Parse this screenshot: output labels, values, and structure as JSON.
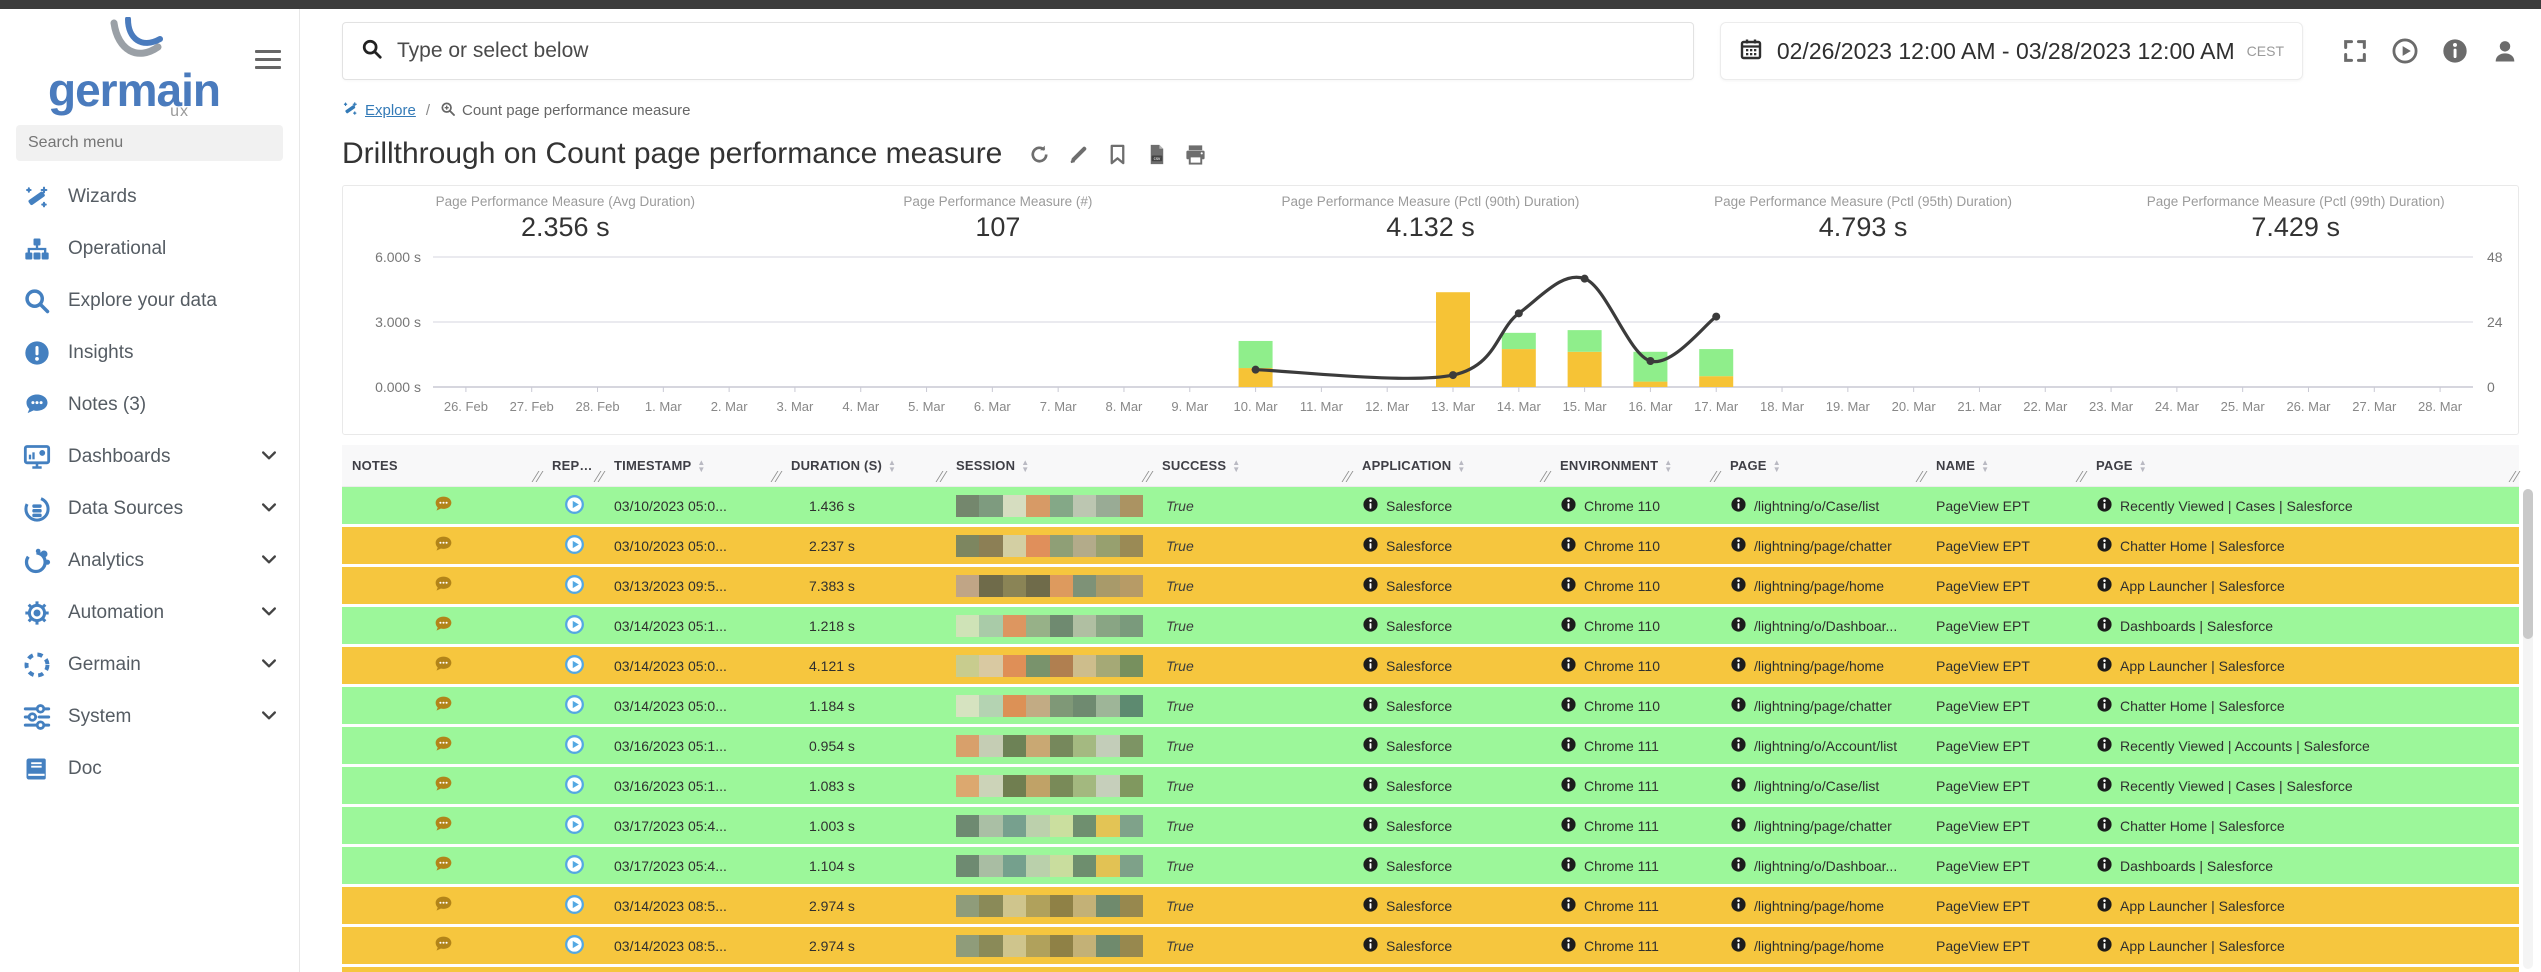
{
  "colors": {
    "accent_blue": "#4480c0",
    "link_blue": "#337ab7",
    "row_green": "#9cf79a",
    "row_yellow": "#f6c63e",
    "bar_yellow": "#f6c336",
    "bar_green": "#8fee8b",
    "line_dark": "#3b3b3b",
    "note_icon": "#b28419",
    "replay_icon": "#54a8e2",
    "info_badge": "#1d1d1d"
  },
  "sidebar": {
    "brand": "germain",
    "brand_sub": "ux",
    "search_placeholder": "Search menu",
    "items": [
      {
        "label": "Wizards",
        "icon": "wand-icon",
        "expandable": false
      },
      {
        "label": "Operational",
        "icon": "hierarchy-icon",
        "expandable": false
      },
      {
        "label": "Explore your data",
        "icon": "search-icon",
        "expandable": false
      },
      {
        "label": "Insights",
        "icon": "alert-circle-icon",
        "expandable": false
      },
      {
        "label": "Notes (3)",
        "icon": "chat-bubble-icon",
        "expandable": false
      },
      {
        "label": "Dashboards",
        "icon": "monitor-chart-icon",
        "expandable": true
      },
      {
        "label": "Data Sources",
        "icon": "database-signal-icon",
        "expandable": true
      },
      {
        "label": "Analytics",
        "icon": "share-nodes-icon",
        "expandable": true
      },
      {
        "label": "Automation",
        "icon": "gear-icon",
        "expandable": true
      },
      {
        "label": "Germain",
        "icon": "dashed-circle-icon",
        "expandable": true
      },
      {
        "label": "System",
        "icon": "sliders-icon",
        "expandable": true
      },
      {
        "label": "Doc",
        "icon": "book-icon",
        "expandable": false
      }
    ]
  },
  "topbar": {
    "search_placeholder": "Type or select below",
    "date_range": "02/26/2023 12:00 AM - 03/28/2023 12:00 AM",
    "timezone": "CEST",
    "icons": [
      "fullscreen-icon",
      "play-circle-icon",
      "info-circle-icon",
      "user-icon"
    ]
  },
  "breadcrumb": {
    "link_label": "Explore",
    "separator": "/",
    "current": "Count page performance measure"
  },
  "page": {
    "title": "Drillthrough on Count page performance measure",
    "action_icons": [
      "refresh-icon",
      "pencil-icon",
      "bookmark-icon",
      "csv-file-icon",
      "print-icon"
    ]
  },
  "metrics": [
    {
      "label": "Page Performance Measure (Avg Duration)",
      "value": "2.356 s"
    },
    {
      "label": "Page Performance Measure (#)",
      "value": "107"
    },
    {
      "label": "Page Performance Measure (Pctl (90th) Duration)",
      "value": "4.132 s"
    },
    {
      "label": "Page Performance Measure (Pctl (95th) Duration)",
      "value": "4.793 s"
    },
    {
      "label": "Page Performance Measure (Pctl (99th) Duration)",
      "value": "7.429 s"
    }
  ],
  "chart_data": {
    "type": "bar",
    "title": "",
    "categories": [
      "26. Feb",
      "27. Feb",
      "28. Feb",
      "1. Mar",
      "2. Mar",
      "3. Mar",
      "4. Mar",
      "5. Mar",
      "6. Mar",
      "7. Mar",
      "8. Mar",
      "9. Mar",
      "10. Mar",
      "11. Mar",
      "12. Mar",
      "13. Mar",
      "14. Mar",
      "15. Mar",
      "16. Mar",
      "17. Mar",
      "18. Mar",
      "19. Mar",
      "20. Mar",
      "21. Mar",
      "22. Mar",
      "23. Mar",
      "24. Mar",
      "25. Mar",
      "26. Mar",
      "27. Mar",
      "28. Mar"
    ],
    "series": [
      {
        "name": "count-yellow",
        "kind": "bar",
        "axis": "right",
        "color": "#f6c336",
        "values": [
          0,
          0,
          0,
          0,
          0,
          0,
          0,
          0,
          0,
          0,
          0,
          0,
          7,
          0,
          0,
          35,
          14,
          13,
          2,
          4,
          0,
          0,
          0,
          0,
          0,
          0,
          0,
          0,
          0,
          0,
          0
        ]
      },
      {
        "name": "count-green",
        "kind": "bar",
        "axis": "right",
        "color": "#8fee8b",
        "values": [
          0,
          0,
          0,
          0,
          0,
          0,
          0,
          0,
          0,
          0,
          0,
          0,
          10,
          0,
          0,
          0,
          6,
          8,
          11,
          10,
          0,
          0,
          0,
          0,
          0,
          0,
          0,
          0,
          0,
          0,
          0
        ]
      },
      {
        "name": "avg-duration-line",
        "kind": "line",
        "axis": "left",
        "color": "#3b3b3b",
        "values": [
          null,
          null,
          null,
          null,
          null,
          null,
          null,
          null,
          null,
          null,
          null,
          null,
          0.8,
          null,
          null,
          0.55,
          3.4,
          5.0,
          1.2,
          3.25,
          null,
          null,
          null,
          null,
          null,
          null,
          null,
          null,
          null,
          null,
          null
        ]
      }
    ],
    "left_axis": {
      "labels": [
        "6.000 s",
        "3.000 s",
        "0.000 s"
      ],
      "values": [
        6,
        3,
        0
      ],
      "range": [
        0,
        6
      ]
    },
    "right_axis": {
      "labels": [
        "48",
        "24",
        "0"
      ],
      "values": [
        48,
        24,
        0
      ],
      "range": [
        0,
        48
      ]
    },
    "grid": true,
    "legend": "none",
    "stacked": true
  },
  "table": {
    "columns": [
      {
        "key": "notes",
        "label": "NOTES",
        "sortable": false
      },
      {
        "key": "replay",
        "label": "REPL...",
        "sortable": false
      },
      {
        "key": "timestamp",
        "label": "TIMESTAMP",
        "sortable": true
      },
      {
        "key": "duration",
        "label": "DURATION (S)",
        "sortable": true
      },
      {
        "key": "session",
        "label": "SESSION",
        "sortable": true
      },
      {
        "key": "success",
        "label": "SUCCESS",
        "sortable": true
      },
      {
        "key": "application",
        "label": "APPLICATION",
        "sortable": true
      },
      {
        "key": "environment",
        "label": "ENVIRONMENT",
        "sortable": true
      },
      {
        "key": "page",
        "label": "PAGE",
        "sortable": true
      },
      {
        "key": "name",
        "label": "NAME",
        "sortable": true
      },
      {
        "key": "page2",
        "label": "PAGE",
        "sortable": true
      }
    ],
    "rows": [
      {
        "tone": "green",
        "timestamp": "03/10/2023 05:0...",
        "duration": "1.436 s",
        "success": "True",
        "application": "Salesforce",
        "environment": "Chrome 110",
        "page": "/lightning/o/Case/list",
        "name": "PageView EPT",
        "page2": "Recently Viewed | Cases | Salesforce",
        "session_colors": [
          "#74876d",
          "#7e9b7f",
          "#d6ddc0",
          "#d79a66",
          "#84a887",
          "#bcc6b1",
          "#99ab95",
          "#ab9362"
        ]
      },
      {
        "tone": "yellow",
        "timestamp": "03/10/2023 05:0...",
        "duration": "2.237 s",
        "success": "True",
        "application": "Salesforce",
        "environment": "Chrome 110",
        "page": "/lightning/page/chatter",
        "name": "PageView EPT",
        "page2": "Chatter Home | Salesforce",
        "session_colors": [
          "#7d8660",
          "#8c7f55",
          "#d3cfa3",
          "#e08f5b",
          "#8f9f76",
          "#b3ab8a",
          "#97a06f",
          "#9a8a55"
        ]
      },
      {
        "tone": "yellow",
        "timestamp": "03/13/2023 09:5...",
        "duration": "7.383 s",
        "success": "True",
        "application": "Salesforce",
        "environment": "Chrome 110",
        "page": "/lightning/page/home",
        "name": "PageView EPT",
        "page2": "App Launcher | Salesforce",
        "session_colors": [
          "#c0a586",
          "#6f6b4a",
          "#8a8456",
          "#6f6b4a",
          "#dd9a5e",
          "#7e9277",
          "#a89a6a",
          "#b79b66"
        ]
      },
      {
        "tone": "green",
        "timestamp": "03/14/2023 05:1...",
        "duration": "1.218 s",
        "success": "True",
        "application": "Salesforce",
        "environment": "Chrome 110",
        "page": "/lightning/o/Dashboar...",
        "name": "PageView EPT",
        "page2": "Dashboards | Salesforce",
        "session_colors": [
          "#cfe3b7",
          "#a9cba8",
          "#dd9660",
          "#97b188",
          "#6f8a70",
          "#b0bfa2",
          "#89a584",
          "#7a9a7c"
        ]
      },
      {
        "tone": "yellow",
        "timestamp": "03/14/2023 05:0...",
        "duration": "4.121 s",
        "success": "True",
        "application": "Salesforce",
        "environment": "Chrome 110",
        "page": "/lightning/page/home",
        "name": "PageView EPT",
        "page2": "App Launcher | Salesforce",
        "session_colors": [
          "#c8cc8e",
          "#d9c9a2",
          "#df8f57",
          "#79936c",
          "#b07f50",
          "#cdbd8c",
          "#a5a976",
          "#77905e"
        ]
      },
      {
        "tone": "green",
        "timestamp": "03/14/2023 05:0...",
        "duration": "1.184 s",
        "success": "True",
        "application": "Salesforce",
        "environment": "Chrome 110",
        "page": "/lightning/page/chatter",
        "name": "PageView EPT",
        "page2": "Chatter Home | Salesforce",
        "session_colors": [
          "#d6e3c0",
          "#b4d3b2",
          "#dc9156",
          "#c2ab84",
          "#7f9877",
          "#6f8a70",
          "#9eb598",
          "#5d8a70"
        ]
      },
      {
        "tone": "green",
        "timestamp": "03/16/2023 05:1...",
        "duration": "0.954 s",
        "success": "True",
        "application": "Salesforce",
        "environment": "Chrome 111",
        "page": "/lightning/o/Account/list",
        "name": "PageView EPT",
        "page2": "Recently Viewed | Accounts | Salesforce",
        "session_colors": [
          "#d8a06b",
          "#c5cdb4",
          "#6d8256",
          "#c9a873",
          "#76885c",
          "#a4b981",
          "#c3cdb9",
          "#7d9464"
        ]
      },
      {
        "tone": "green",
        "timestamp": "03/16/2023 05:1...",
        "duration": "1.083 s",
        "success": "True",
        "application": "Salesforce",
        "environment": "Chrome 111",
        "page": "/lightning/o/Case/list",
        "name": "PageView EPT",
        "page2": "Recently Viewed | Cases | Salesforce",
        "session_colors": [
          "#dca86f",
          "#ccd3b8",
          "#707e50",
          "#c0a267",
          "#798a58",
          "#a3b87f",
          "#c6cfbb",
          "#80985f"
        ]
      },
      {
        "tone": "green",
        "timestamp": "03/17/2023 05:4...",
        "duration": "1.003 s",
        "success": "True",
        "application": "Salesforce",
        "environment": "Chrome 111",
        "page": "/lightning/page/chatter",
        "name": "PageView EPT",
        "page2": "Chatter Home | Salesforce",
        "session_colors": [
          "#6e8a71",
          "#aabfa5",
          "#77a08e",
          "#bcd0ac",
          "#cbdf9f",
          "#6f8f6f",
          "#e3c455",
          "#7fa28a"
        ]
      },
      {
        "tone": "green",
        "timestamp": "03/17/2023 05:4...",
        "duration": "1.104 s",
        "success": "True",
        "application": "Salesforce",
        "environment": "Chrome 111",
        "page": "/lightning/o/Dashboar...",
        "name": "PageView EPT",
        "page2": "Dashboards | Salesforce",
        "session_colors": [
          "#6e8a71",
          "#a9bda3",
          "#75a08d",
          "#bad0ab",
          "#c9dd9e",
          "#6e8e6e",
          "#e2c254",
          "#7ea189"
        ]
      },
      {
        "tone": "yellow",
        "timestamp": "03/14/2023 08:5...",
        "duration": "2.974 s",
        "success": "True",
        "application": "Salesforce",
        "environment": "Chrome 111",
        "page": "/lightning/page/home",
        "name": "PageView EPT",
        "page2": "App Launcher | Salesforce",
        "session_colors": [
          "#8f9c7a",
          "#8a8a58",
          "#cfc58d",
          "#b0a15c",
          "#8f8146",
          "#c3b177",
          "#6f8a6d",
          "#97884e"
        ]
      },
      {
        "tone": "yellow",
        "timestamp": "03/14/2023 08:5...",
        "duration": "2.974 s",
        "success": "True",
        "application": "Salesforce",
        "environment": "Chrome 111",
        "page": "/lightning/page/home",
        "name": "PageView EPT",
        "page2": "App Launcher | Salesforce",
        "session_colors": [
          "#8f9c7a",
          "#8a8a58",
          "#cfc58d",
          "#b0a15c",
          "#8f8146",
          "#c3b177",
          "#6f8a6d",
          "#97884e"
        ]
      }
    ]
  }
}
